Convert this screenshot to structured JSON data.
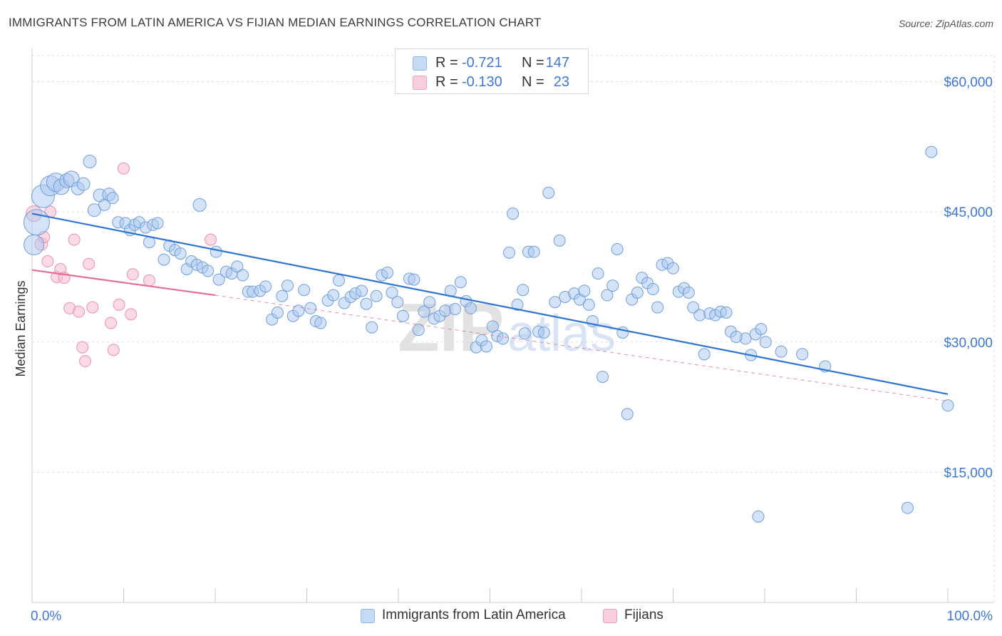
{
  "title": "IMMIGRANTS FROM LATIN AMERICA VS FIJIAN MEDIAN EARNINGS CORRELATION CHART",
  "source": "Source: ZipAtlas.com",
  "watermark": {
    "zip": "ZIP",
    "atlas": "atlas"
  },
  "colors": {
    "blue_fill": "#a9c8f0",
    "blue_stroke": "#6f9fdc",
    "blue_line": "#2f74d0",
    "pink_fill": "#f7bcd0",
    "pink_stroke": "#e892b0",
    "pink_line": "#e36f96",
    "axis_text_blue": "#3d79d4",
    "grid": "#dcdcdc"
  },
  "legend": {
    "rows": [
      {
        "r_label": "R =",
        "r_value": "-0.721",
        "n_label": "N =",
        "n_value": "147"
      },
      {
        "r_label": "R =",
        "r_value": "-0.130",
        "n_label": "N =",
        "n_value": "23"
      }
    ]
  },
  "bottom_legend": {
    "series_a": "Immigrants from Latin America",
    "series_b": "Fijians"
  },
  "chart_data": {
    "type": "scatter",
    "title": "IMMIGRANTS FROM LATIN AMERICA VS FIJIAN MEDIAN EARNINGS CORRELATION CHART",
    "xlabel": "",
    "ylabel": "Median Earnings",
    "xlim": [
      0,
      100
    ],
    "ylim": [
      0,
      63000
    ],
    "x_tick_labels": [
      "0.0%",
      "100.0%"
    ],
    "y_ticks": [
      15000,
      30000,
      45000,
      60000
    ],
    "y_tick_labels": [
      "$15,000",
      "$30,000",
      "$45,000",
      "$60,000"
    ],
    "grid": true,
    "series": [
      {
        "name": "Immigrants from Latin America",
        "r": -0.721,
        "n": 147,
        "trend": {
          "x0": 0,
          "y0": 44800,
          "x1": 100,
          "y1": 24000
        },
        "points": [
          [
            0.2,
            41200,
            14
          ],
          [
            0.5,
            43800,
            18
          ],
          [
            1.2,
            46800,
            16
          ],
          [
            2.0,
            48000,
            14
          ],
          [
            2.6,
            48400,
            13
          ],
          [
            3.2,
            47900,
            11
          ],
          [
            3.8,
            48600,
            10
          ],
          [
            4.3,
            48800,
            11
          ],
          [
            5.0,
            47700,
            9
          ],
          [
            5.6,
            48200,
            9
          ],
          [
            6.3,
            50800,
            9
          ],
          [
            6.8,
            45200,
            9
          ],
          [
            7.4,
            46900,
            9
          ],
          [
            7.9,
            45800,
            8
          ],
          [
            8.4,
            47000,
            9
          ],
          [
            8.8,
            46600,
            8
          ],
          [
            9.4,
            43800,
            8
          ],
          [
            10.2,
            43700,
            8
          ],
          [
            10.7,
            42900,
            8
          ],
          [
            11.2,
            43500,
            8
          ],
          [
            11.7,
            43800,
            8
          ],
          [
            12.4,
            43200,
            8
          ],
          [
            13.2,
            43500,
            8
          ],
          [
            13.7,
            43700,
            8
          ],
          [
            12.8,
            41500,
            8
          ],
          [
            14.4,
            39500,
            8
          ],
          [
            15.0,
            41100,
            8
          ],
          [
            15.6,
            40600,
            8
          ],
          [
            16.2,
            40200,
            8
          ],
          [
            16.9,
            38400,
            8
          ],
          [
            17.4,
            39300,
            8
          ],
          [
            18.0,
            38900,
            8
          ],
          [
            18.6,
            38600,
            8
          ],
          [
            19.2,
            38200,
            8
          ],
          [
            18.3,
            45800,
            9
          ],
          [
            20.1,
            40400,
            8
          ],
          [
            20.4,
            37200,
            8
          ],
          [
            21.2,
            38100,
            8
          ],
          [
            21.8,
            37900,
            8
          ],
          [
            22.4,
            38700,
            8
          ],
          [
            23.0,
            37700,
            8
          ],
          [
            23.6,
            35800,
            8
          ],
          [
            24.1,
            35800,
            8
          ],
          [
            24.9,
            35900,
            8
          ],
          [
            25.5,
            36400,
            8
          ],
          [
            26.2,
            32600,
            8
          ],
          [
            26.8,
            33400,
            8
          ],
          [
            27.3,
            35300,
            8
          ],
          [
            27.9,
            36500,
            8
          ],
          [
            28.5,
            33000,
            8
          ],
          [
            29.1,
            33600,
            8
          ],
          [
            29.7,
            36000,
            8
          ],
          [
            30.4,
            33900,
            8
          ],
          [
            31.0,
            32400,
            8
          ],
          [
            31.5,
            32200,
            8
          ],
          [
            32.3,
            34800,
            8
          ],
          [
            32.9,
            35400,
            8
          ],
          [
            33.5,
            37100,
            8
          ],
          [
            34.1,
            34500,
            8
          ],
          [
            34.8,
            35200,
            8
          ],
          [
            35.3,
            35600,
            8
          ],
          [
            36.0,
            35900,
            8
          ],
          [
            36.5,
            34400,
            8
          ],
          [
            37.1,
            31700,
            8
          ],
          [
            37.6,
            35300,
            8
          ],
          [
            38.2,
            37700,
            8
          ],
          [
            38.8,
            38000,
            8
          ],
          [
            39.3,
            35700,
            8
          ],
          [
            39.9,
            34600,
            8
          ],
          [
            40.5,
            33000,
            8
          ],
          [
            41.2,
            37300,
            8
          ],
          [
            41.7,
            37200,
            8
          ],
          [
            42.2,
            31400,
            8
          ],
          [
            42.8,
            33500,
            8
          ],
          [
            43.4,
            34600,
            8
          ],
          [
            43.9,
            32700,
            8
          ],
          [
            44.5,
            33000,
            8
          ],
          [
            45.1,
            33600,
            8
          ],
          [
            45.7,
            35900,
            8
          ],
          [
            46.2,
            33800,
            8
          ],
          [
            46.8,
            36900,
            8
          ],
          [
            47.4,
            34700,
            8
          ],
          [
            47.9,
            33900,
            8
          ],
          [
            48.5,
            29400,
            8
          ],
          [
            49.1,
            30200,
            8
          ],
          [
            49.6,
            29500,
            8
          ],
          [
            50.3,
            31800,
            8
          ],
          [
            50.8,
            30700,
            8
          ],
          [
            51.4,
            30400,
            8
          ],
          [
            52.1,
            40300,
            8
          ],
          [
            52.5,
            44800,
            8
          ],
          [
            53.0,
            34300,
            8
          ],
          [
            53.6,
            36000,
            8
          ],
          [
            54.2,
            40400,
            8
          ],
          [
            54.8,
            40400,
            8
          ],
          [
            55.3,
            31200,
            8
          ],
          [
            55.9,
            31100,
            8
          ],
          [
            56.4,
            47200,
            8
          ],
          [
            57.1,
            34600,
            8
          ],
          [
            57.6,
            41700,
            8
          ],
          [
            58.2,
            35200,
            8
          ],
          [
            53.8,
            31000,
            8
          ],
          [
            59.2,
            35600,
            8
          ],
          [
            59.8,
            34900,
            8
          ],
          [
            60.3,
            35900,
            8
          ],
          [
            60.8,
            34300,
            8
          ],
          [
            61.2,
            32400,
            8
          ],
          [
            61.8,
            37900,
            8
          ],
          [
            62.3,
            26000,
            8
          ],
          [
            62.8,
            35400,
            8
          ],
          [
            63.4,
            36500,
            8
          ],
          [
            63.9,
            40700,
            8
          ],
          [
            64.5,
            31100,
            8
          ],
          [
            65.0,
            21700,
            8
          ],
          [
            65.5,
            34900,
            8
          ],
          [
            66.1,
            35700,
            8
          ],
          [
            66.6,
            37400,
            8
          ],
          [
            67.2,
            36800,
            8
          ],
          [
            67.8,
            36100,
            8
          ],
          [
            68.3,
            34000,
            8
          ],
          [
            68.8,
            38900,
            8
          ],
          [
            69.4,
            39100,
            8
          ],
          [
            70.0,
            38500,
            8
          ],
          [
            70.6,
            35800,
            8
          ],
          [
            71.2,
            36200,
            8
          ],
          [
            71.7,
            35700,
            8
          ],
          [
            72.2,
            34000,
            8
          ],
          [
            72.9,
            33100,
            8
          ],
          [
            73.4,
            28600,
            8
          ],
          [
            74.0,
            33300,
            8
          ],
          [
            74.6,
            33100,
            8
          ],
          [
            75.2,
            33500,
            8
          ],
          [
            75.8,
            33400,
            8
          ],
          [
            76.3,
            31200,
            8
          ],
          [
            77.9,
            30400,
            8
          ],
          [
            78.5,
            28500,
            8
          ],
          [
            79.0,
            30900,
            8
          ],
          [
            79.6,
            31500,
            8
          ],
          [
            80.1,
            30000,
            8
          ],
          [
            81.8,
            28900,
            8
          ],
          [
            84.1,
            28600,
            8
          ],
          [
            86.6,
            27200,
            8
          ],
          [
            76.9,
            30600,
            8
          ],
          [
            79.3,
            9900,
            8
          ],
          [
            95.6,
            10900,
            8
          ],
          [
            98.2,
            51900,
            8
          ],
          [
            100.0,
            22700,
            8
          ]
        ]
      },
      {
        "name": "Fijians",
        "r": -0.13,
        "n": 23,
        "trend": {
          "x0": 0,
          "y0": 38300,
          "x1": 20,
          "y1": 35400,
          "dash_to": {
            "x": 100,
            "y": 23200
          }
        },
        "points": [
          [
            0.2,
            44800,
            11
          ],
          [
            1.0,
            41300,
            9
          ],
          [
            1.7,
            39300,
            8
          ],
          [
            2.0,
            45000,
            8
          ],
          [
            2.7,
            37500,
            8
          ],
          [
            3.1,
            38400,
            8
          ],
          [
            3.5,
            37400,
            8
          ],
          [
            4.1,
            33900,
            8
          ],
          [
            4.6,
            41800,
            8
          ],
          [
            5.1,
            33500,
            8
          ],
          [
            5.5,
            29400,
            8
          ],
          [
            5.8,
            27800,
            8
          ],
          [
            6.2,
            39000,
            8
          ],
          [
            6.6,
            34000,
            8
          ],
          [
            8.6,
            32200,
            8
          ],
          [
            8.9,
            29100,
            8
          ],
          [
            9.5,
            34300,
            8
          ],
          [
            10.0,
            50000,
            8
          ],
          [
            10.8,
            33200,
            8
          ],
          [
            11.0,
            37800,
            8
          ],
          [
            12.8,
            37100,
            8
          ],
          [
            19.5,
            41800,
            8
          ],
          [
            1.3,
            42100,
            8
          ]
        ]
      }
    ]
  }
}
